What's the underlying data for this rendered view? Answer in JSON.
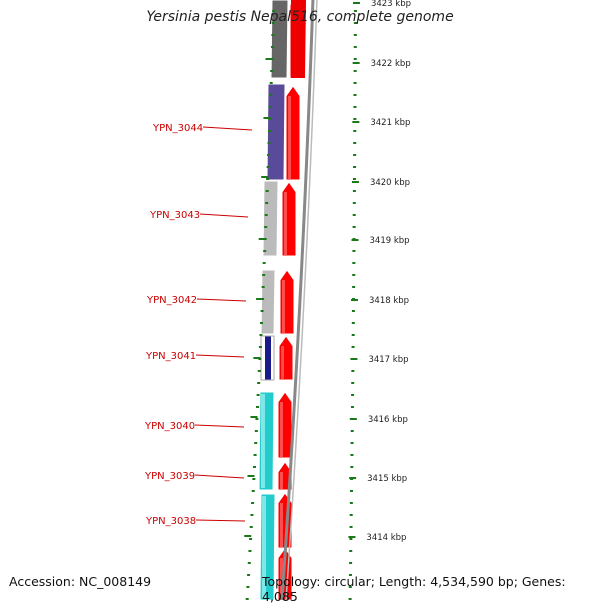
{
  "title": "Yersinia pestis Nepal516, complete genome",
  "accession": "Accession: NC_008149",
  "summary": "Topology: circular; Length: 4,534,590 bp; Genes: 4,085",
  "ruler": {
    "unit": "kbp",
    "ticks": [
      {
        "label": "3423 kbp",
        "kbp": 3423
      },
      {
        "label": "3422 kbp",
        "kbp": 3422
      },
      {
        "label": "3421 kbp",
        "kbp": 3421
      },
      {
        "label": "3420 kbp",
        "kbp": 3420
      },
      {
        "label": "3419 kbp",
        "kbp": 3419
      },
      {
        "label": "3418 kbp",
        "kbp": 3418
      },
      {
        "label": "3417 kbp",
        "kbp": 3417
      },
      {
        "label": "3416 kbp",
        "kbp": 3416
      },
      {
        "label": "3415 kbp",
        "kbp": 3415
      },
      {
        "label": "3414 kbp",
        "kbp": 3414
      }
    ]
  },
  "genes": [
    {
      "label": "YPN_3044"
    },
    {
      "label": "YPN_3043"
    },
    {
      "label": "YPN_3042"
    },
    {
      "label": "YPN_3041"
    },
    {
      "label": "YPN_3040"
    },
    {
      "label": "YPN_3039"
    },
    {
      "label": "YPN_3038"
    }
  ],
  "colors": {
    "forward_cds": "#ff0000",
    "ruler": "#1a7a1a",
    "backbone": "#888888",
    "gene_label": "#cc0000",
    "cog_dark_gray": "#666666",
    "cog_purple": "#5a4a9a",
    "cog_light_gray": "#bbbbbb",
    "cog_navy": "#1a1a8a",
    "cog_cyan": "#22cccc"
  }
}
